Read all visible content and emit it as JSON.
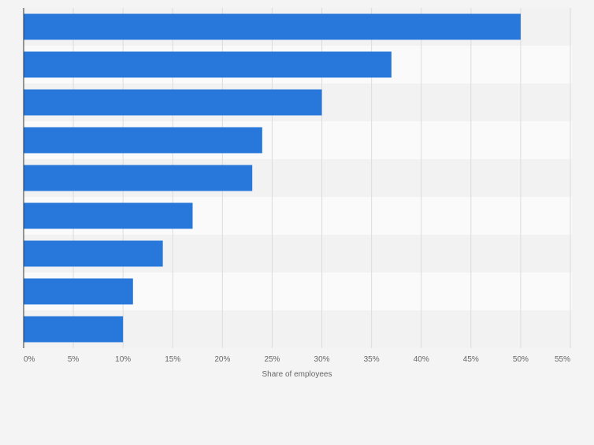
{
  "chart_data": {
    "type": "bar",
    "orientation": "horizontal",
    "categories": [
      "",
      "",
      "",
      "",
      "",
      "",
      "",
      "",
      ""
    ],
    "values": [
      50,
      37,
      30,
      24,
      23,
      17,
      14,
      11,
      10
    ],
    "xlabel": "Share of employees",
    "ylabel": "",
    "xlim": [
      0,
      55
    ],
    "xticks": [
      0,
      5,
      10,
      15,
      20,
      25,
      30,
      35,
      40,
      45,
      50,
      55
    ],
    "xtick_labels": [
      "0%",
      "5%",
      "10%",
      "15%",
      "20%",
      "25%",
      "30%",
      "35%",
      "40%",
      "45%",
      "50%",
      "55%"
    ],
    "grid": true,
    "colors": {
      "bar": "#2878dc",
      "band_light": "#fafafa",
      "band_dark": "#f2f2f2",
      "grid": "#dcdcdc",
      "axis": "#333333",
      "tick_text": "#666666",
      "background": "#f4f4f4"
    }
  }
}
